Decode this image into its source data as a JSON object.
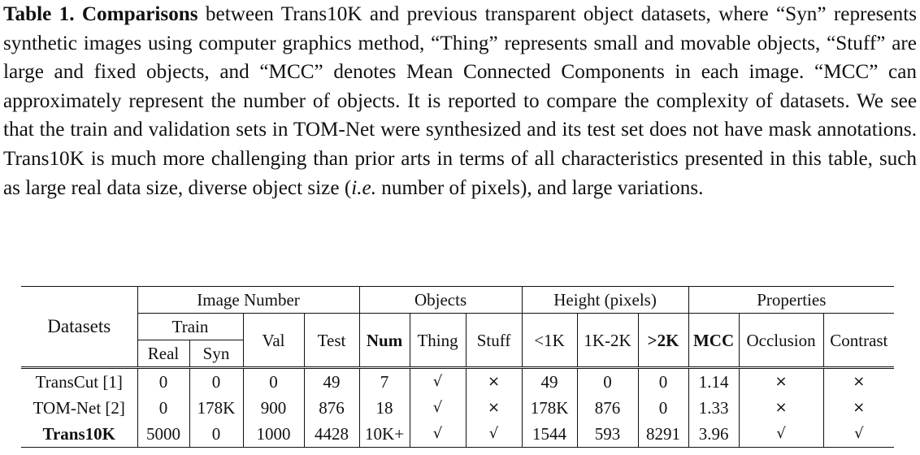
{
  "caption": {
    "label": "Table 1.",
    "lead": "Comparisons",
    "part1": " between Trans10K and previous transparent object datasets, where “Syn” represents synthetic images using computer graphics method, “Thing” represents small and movable objects, “Stuff” are large and fixed objects, and “MCC” denotes Mean Connected Components in each image. “MCC” can approximately represent the number of objects. It is reported to compare the complexity of datasets. We see that the train and validation sets in TOM-Net were synthesized and its test set does not have mask annotations. Trans10K is much more challenging than prior arts in terms of all characteristics presented in this table, such as large real data size, diverse object size (",
    "ie": "i.e.",
    "part2": " number of pixels), and large variations."
  },
  "table": {
    "headers": {
      "datasets": "Datasets",
      "image_number": "Image Number",
      "objects": "Objects",
      "height": "Height (pixels)",
      "properties": "Properties",
      "train": "Train",
      "real": "Real",
      "syn": "Syn",
      "val": "Val",
      "test": "Test",
      "num": "Num",
      "thing": "Thing",
      "stuff": "Stuff",
      "lt1k": "<1K",
      "k1_2k": "1K-2K",
      "gt2k": ">2K",
      "mcc": "MCC",
      "occlusion": "Occlusion",
      "contrast": "Contrast"
    },
    "rows": [
      {
        "name": "TransCut [1]",
        "real": "0",
        "syn": "0",
        "val": "0",
        "test": "49",
        "num": "7",
        "thing": "√",
        "stuff": "×",
        "lt1k": "49",
        "k1_2k": "0",
        "gt2k": "0",
        "mcc": "1.14",
        "occlusion": "×",
        "contrast": "×"
      },
      {
        "name": "TOM-Net [2]",
        "real": "0",
        "syn": "178K",
        "val": "900",
        "test": "876",
        "num": "18",
        "thing": "√",
        "stuff": "×",
        "lt1k": "178K",
        "k1_2k": "876",
        "gt2k": "0",
        "mcc": "1.33",
        "occlusion": "×",
        "contrast": "×"
      },
      {
        "name": "Trans10K",
        "real": "5000",
        "syn": "0",
        "val": "1000",
        "test": "4428",
        "num": "10K+",
        "thing": "√",
        "stuff": "√",
        "lt1k": "1544",
        "k1_2k": "593",
        "gt2k": "8291",
        "mcc": "3.96",
        "occlusion": "√",
        "contrast": "√"
      }
    ]
  }
}
